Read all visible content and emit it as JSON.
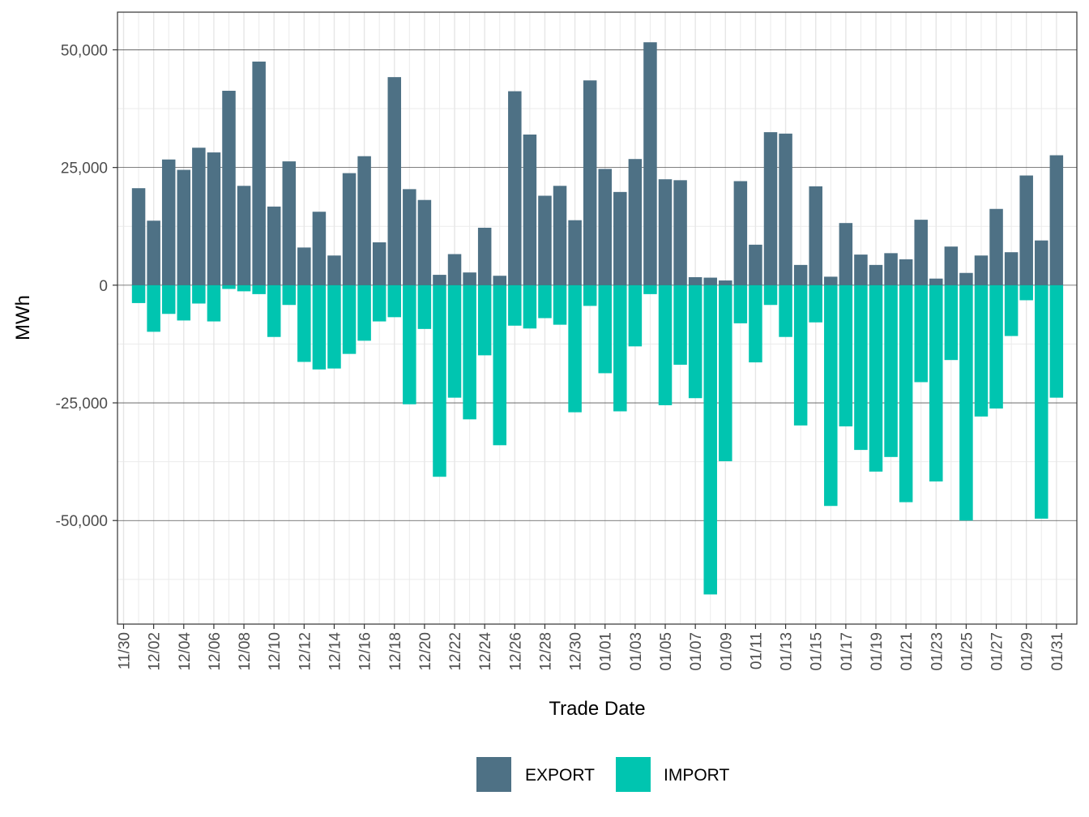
{
  "chart_data": {
    "type": "bar",
    "stacked": true,
    "title": "",
    "xlabel": "Trade Date",
    "ylabel": "MWh",
    "ylim": [
      -72000,
      58000
    ],
    "y_ticks": [
      50000,
      25000,
      0,
      -25000,
      -50000
    ],
    "y_tick_labels": [
      "50,000",
      "25,000",
      "0",
      "-25,000",
      "-50,000"
    ],
    "x_tick_labels": [
      "11/30",
      "12/02",
      "12/04",
      "12/06",
      "12/08",
      "12/10",
      "12/12",
      "12/14",
      "12/16",
      "12/18",
      "12/20",
      "12/22",
      "12/24",
      "12/26",
      "12/28",
      "12/30",
      "01/01",
      "01/03",
      "01/05",
      "01/07",
      "01/09",
      "01/11",
      "01/13",
      "01/15",
      "01/17",
      "01/19",
      "01/21",
      "01/23",
      "01/25",
      "01/27",
      "01/29",
      "01/31"
    ],
    "grid": true,
    "legend_position": "bottom",
    "categories": [
      "11/30",
      "12/01",
      "12/02",
      "12/03",
      "12/04",
      "12/05",
      "12/06",
      "12/07",
      "12/08",
      "12/09",
      "12/10",
      "12/11",
      "12/12",
      "12/13",
      "12/14",
      "12/15",
      "12/16",
      "12/17",
      "12/18",
      "12/19",
      "12/20",
      "12/21",
      "12/22",
      "12/23",
      "12/24",
      "12/25",
      "12/26",
      "12/27",
      "12/28",
      "12/29",
      "12/30",
      "12/31",
      "01/01",
      "01/02",
      "01/03",
      "01/04",
      "01/05",
      "01/06",
      "01/07",
      "01/08",
      "01/09",
      "01/10",
      "01/11",
      "01/12",
      "01/13",
      "01/14",
      "01/15",
      "01/16",
      "01/17",
      "01/18",
      "01/19",
      "01/20",
      "01/21",
      "01/22",
      "01/23",
      "01/24",
      "01/25",
      "01/26",
      "01/27",
      "01/28",
      "01/29",
      "01/30",
      "01/31"
    ],
    "series": [
      {
        "name": "EXPORT",
        "color": "#4e7185",
        "values": [
          0,
          20600,
          13700,
          26700,
          24500,
          29200,
          28200,
          41300,
          21100,
          47500,
          16700,
          26300,
          8000,
          15600,
          6300,
          23800,
          27400,
          9100,
          44200,
          20400,
          18100,
          2200,
          6600,
          2700,
          12200,
          2000,
          41200,
          32000,
          19000,
          21100,
          13800,
          43500,
          24700,
          19800,
          26800,
          51600,
          22500,
          22300,
          1700,
          1600,
          1000,
          22100,
          8600,
          32500,
          32200,
          4300,
          21000,
          1800,
          13200,
          6500,
          4300,
          6800,
          5500,
          13900,
          1400,
          8200,
          2600,
          6300,
          16200,
          7000,
          23300,
          9500,
          27600
        ]
      },
      {
        "name": "IMPORT",
        "color": "#00c5b0",
        "values": [
          0,
          -3800,
          -9900,
          -6100,
          -7500,
          -3900,
          -7700,
          -800,
          -1300,
          -1900,
          -11000,
          -4200,
          -16300,
          -17900,
          -17700,
          -14600,
          -11800,
          -7700,
          -6800,
          -25300,
          -9300,
          -40700,
          -23900,
          -28500,
          -14900,
          -34000,
          -8600,
          -9200,
          -7000,
          -8400,
          -27000,
          -4400,
          -18700,
          -26800,
          -13000,
          -1900,
          -25500,
          -16900,
          -24000,
          -65700,
          -37400,
          -8100,
          -16400,
          -4200,
          -11000,
          -29800,
          -7900,
          -46900,
          -30000,
          -35000,
          -39600,
          -36500,
          -46100,
          -20600,
          -41700,
          -15900,
          -50000,
          -27900,
          -26200,
          -10800,
          -3200,
          -49600,
          -23900
        ]
      }
    ]
  }
}
